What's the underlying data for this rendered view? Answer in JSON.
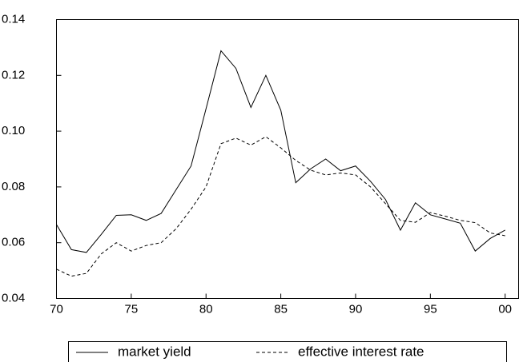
{
  "chart_data": {
    "type": "line",
    "x": [
      70,
      71,
      72,
      73,
      74,
      75,
      76,
      77,
      78,
      79,
      80,
      81,
      82,
      83,
      84,
      85,
      86,
      87,
      88,
      89,
      90,
      91,
      92,
      93,
      94,
      95,
      96,
      97,
      98,
      99,
      100
    ],
    "series": [
      {
        "name": "market yield",
        "color": "#000000",
        "line_style": "solid",
        "values": [
          0.0665,
          0.0575,
          0.0565,
          0.063,
          0.0698,
          0.07,
          0.068,
          0.0705,
          0.079,
          0.0875,
          0.108,
          0.1288,
          0.1225,
          0.1085,
          0.12,
          0.1075,
          0.0815,
          0.0865,
          0.09,
          0.0858,
          0.0875,
          0.082,
          0.0755,
          0.0645,
          0.0743,
          0.07,
          0.0685,
          0.067,
          0.057,
          0.0615,
          0.0645
        ]
      },
      {
        "name": "effective interest rate",
        "color": "#000000",
        "line_style": "dashed",
        "values": [
          0.0505,
          0.048,
          0.049,
          0.056,
          0.06,
          0.057,
          0.059,
          0.06,
          0.065,
          0.072,
          0.08,
          0.0955,
          0.0975,
          0.095,
          0.098,
          0.094,
          0.0895,
          0.086,
          0.0843,
          0.085,
          0.0843,
          0.08,
          0.074,
          0.068,
          0.0673,
          0.0708,
          0.0695,
          0.068,
          0.0672,
          0.0635,
          0.0625
        ]
      }
    ],
    "xlim": [
      70,
      100.9
    ],
    "xticks": [
      70,
      75,
      80,
      85,
      90,
      95,
      {
        "value": 100,
        "label": "00"
      }
    ],
    "ylim": [
      0.04,
      0.14
    ],
    "yticks": [
      0.04,
      0.06,
      0.08,
      {
        "value": 0.1,
        "label": "0.10"
      },
      0.12,
      0.14
    ],
    "legend": "bottom"
  }
}
